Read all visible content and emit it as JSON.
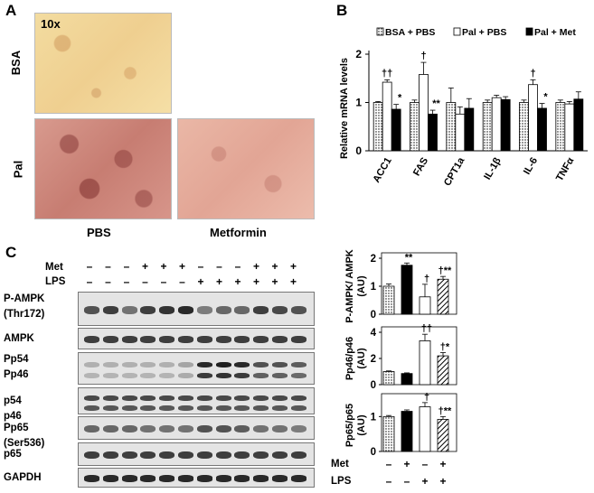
{
  "panelA": {
    "label": "A",
    "magnification": "10x",
    "rows": [
      "BSA",
      "Pal"
    ],
    "cols": [
      "PBS",
      "Metformin"
    ]
  },
  "panelB": {
    "label": "B",
    "legend": [
      "BSA + PBS",
      "Pal + PBS",
      "Pal + Met"
    ],
    "ylabel": "Relative mRNA levels"
  },
  "panelC": {
    "label": "C",
    "treatments": {
      "met_label": "Met",
      "lps_label": "LPS",
      "met": [
        "–",
        "–",
        "–",
        "+",
        "+",
        "+",
        "–",
        "–",
        "–",
        "+",
        "+",
        "+"
      ],
      "lps": [
        "–",
        "–",
        "–",
        "–",
        "–",
        "–",
        "+",
        "+",
        "+",
        "+",
        "+",
        "+"
      ]
    },
    "blots": [
      {
        "id": "pampk",
        "lines": [
          "P-AMPK",
          "(Thr172)"
        ]
      },
      {
        "id": "ampk",
        "lines": [
          "AMPK"
        ]
      },
      {
        "id": "pp54",
        "lines": [
          "Pp54",
          "Pp46"
        ]
      },
      {
        "id": "p54",
        "lines": [
          "p54",
          "p46"
        ]
      },
      {
        "id": "pp65",
        "lines": [
          "Pp65",
          "(Ser536)"
        ]
      },
      {
        "id": "p65",
        "lines": [
          "p65"
        ]
      },
      {
        "id": "gapdh",
        "lines": [
          "GAPDH"
        ]
      }
    ],
    "bottom_met": [
      "–",
      "+",
      "–",
      "+"
    ],
    "bottom_lps": [
      "–",
      "–",
      "+",
      "+"
    ]
  },
  "chart_data": [
    {
      "type": "bar",
      "title": "",
      "ylabel": "Relative mRNA levels",
      "categories": [
        "ACC1",
        "FAS",
        "CPT1a",
        "IL-1β",
        "IL-6",
        "TNFα"
      ],
      "ylim": [
        0,
        2
      ],
      "yticks": [
        0,
        1,
        2
      ],
      "series": [
        {
          "name": "BSA + PBS",
          "fill": "dotted",
          "values": [
            1.0,
            1.0,
            1.0,
            1.0,
            1.0,
            1.0
          ],
          "err": [
            0.02,
            0.05,
            0.3,
            0.05,
            0.05,
            0.05
          ]
        },
        {
          "name": "Pal + PBS",
          "fill": "white",
          "values": [
            1.42,
            1.58,
            0.76,
            1.1,
            1.37,
            0.97
          ],
          "err": [
            0.05,
            0.25,
            0.15,
            0.05,
            0.1,
            0.05
          ]
        },
        {
          "name": "Pal + Met",
          "fill": "black",
          "values": [
            0.86,
            0.76,
            0.88,
            1.06,
            0.88,
            1.07
          ],
          "err": [
            0.1,
            0.08,
            0.2,
            0.06,
            0.1,
            0.15
          ]
        }
      ],
      "annotations": [
        {
          "cat": 0,
          "series": 1,
          "text": "††"
        },
        {
          "cat": 0,
          "series": 2,
          "text": "*"
        },
        {
          "cat": 1,
          "series": 1,
          "text": "†"
        },
        {
          "cat": 1,
          "series": 2,
          "text": "**"
        },
        {
          "cat": 4,
          "series": 1,
          "text": "†"
        },
        {
          "cat": 4,
          "series": 2,
          "text": "*"
        }
      ]
    },
    {
      "type": "bar",
      "ylabel": "P-AMPK/ AMPK (AU)",
      "categories": [
        "g1",
        "g2",
        "g3",
        "g4"
      ],
      "ylim": [
        0,
        2
      ],
      "yticks": [
        0,
        1,
        2
      ],
      "fills": [
        "dotted",
        "black",
        "white",
        "hatched"
      ],
      "values": [
        1.0,
        1.75,
        0.62,
        1.25
      ],
      "err": [
        0.08,
        0.08,
        0.45,
        0.1
      ],
      "annotations": [
        "",
        "**",
        "†",
        "†**"
      ]
    },
    {
      "type": "bar",
      "ylabel": "Pp46/p46 (AU)",
      "categories": [
        "g1",
        "g2",
        "g3",
        "g4"
      ],
      "ylim": [
        0,
        4
      ],
      "yticks": [
        0,
        2,
        4
      ],
      "fills": [
        "dotted",
        "black",
        "white",
        "hatched"
      ],
      "values": [
        1.0,
        0.85,
        3.35,
        2.2
      ],
      "err": [
        0.05,
        0.05,
        0.5,
        0.25
      ],
      "annotations": [
        "",
        "",
        "††",
        "†*"
      ]
    },
    {
      "type": "bar",
      "ylabel": "Pp65/p65 (AU)",
      "categories": [
        "g1",
        "g2",
        "g3",
        "g4"
      ],
      "ylim": [
        0,
        1.5
      ],
      "yticks": [
        0,
        1
      ],
      "fills": [
        "dotted",
        "black",
        "white",
        "hatched"
      ],
      "values": [
        1.0,
        1.15,
        1.28,
        0.92
      ],
      "err": [
        0.03,
        0.04,
        0.12,
        0.08
      ],
      "annotations": [
        "",
        "",
        "†",
        "†**"
      ]
    }
  ]
}
